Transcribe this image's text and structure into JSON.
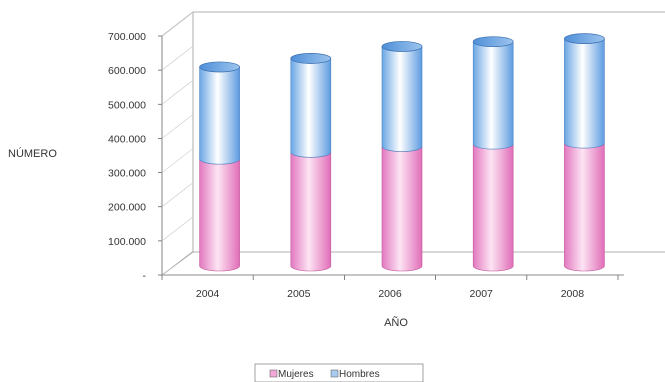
{
  "chart_data": {
    "type": "bar",
    "stacked": true,
    "style": "3d-cylinder",
    "categories": [
      "2004",
      "2005",
      "2006",
      "2007",
      "2008"
    ],
    "series": [
      {
        "name": "Mujeres",
        "values": [
          313000,
          333000,
          350000,
          357000,
          360000
        ],
        "color": "#f0a8d8"
      },
      {
        "name": "Hombres",
        "values": [
          270000,
          275000,
          293000,
          300000,
          306000
        ],
        "color": "#a8ccf0"
      }
    ],
    "y_ticks": [
      "-",
      "100.000",
      "200.000",
      "300.000",
      "400.000",
      "500.000",
      "600.000",
      "700.000"
    ],
    "ylim": [
      0,
      700000
    ],
    "xlabel": "AÑO",
    "ylabel": "NÚMERO",
    "grid": false,
    "legend_position": "bottom"
  }
}
